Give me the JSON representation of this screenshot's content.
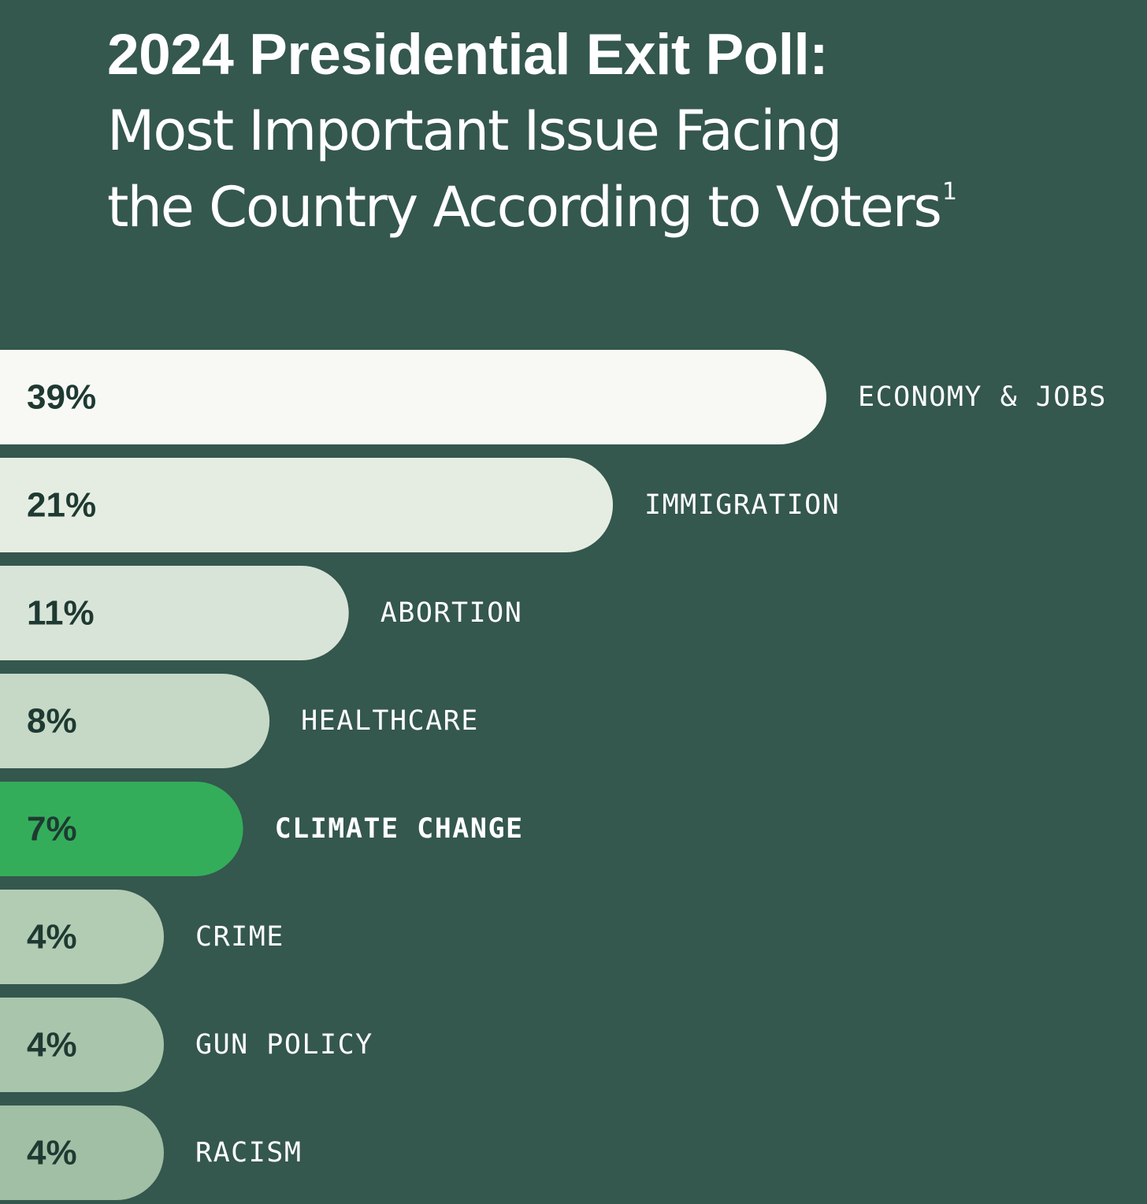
{
  "title": {
    "line1": "2024 Presidential Exit Poll:",
    "line2": "Most Important Issue Facing",
    "line3": "the Country According to Voters",
    "footnote_marker": "1"
  },
  "chart_data": {
    "type": "bar",
    "orientation": "horizontal",
    "title": "2024 Presidential Exit Poll: Most Important Issue Facing the Country According to Voters",
    "categories": [
      "ECONOMY & JOBS",
      "IMMIGRATION",
      "ABORTION",
      "HEALTHCARE",
      "CLIMATE CHANGE",
      "CRIME",
      "GUN POLICY",
      "RACISM"
    ],
    "values": [
      39,
      21,
      11,
      8,
      7,
      4,
      4,
      4
    ],
    "value_labels": [
      "39%",
      "21%",
      "11%",
      "8%",
      "7%",
      "4%",
      "4%",
      "4%"
    ],
    "highlight": "CLIMATE CHANGE",
    "unit": "%",
    "xlabel": "",
    "ylabel": ""
  },
  "colors": {
    "background": "#34574e",
    "bar_fills": [
      "#f8f9f4",
      "#e5ede2",
      "#d9e4d8",
      "#c6d9c7",
      "#34ad5a",
      "#b2ccb4",
      "#a9c6ad",
      "#a0bfa5"
    ],
    "value_text": "#1e3a32",
    "category_text": "#ffffff"
  }
}
